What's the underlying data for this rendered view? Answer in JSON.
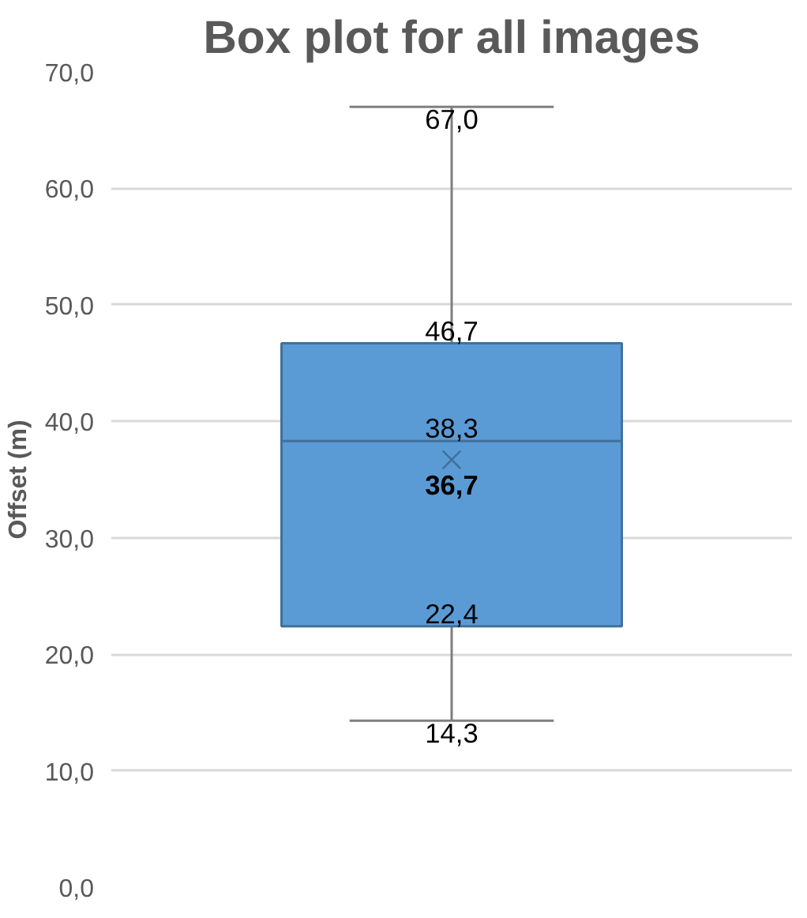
{
  "chart_data": {
    "type": "box",
    "title": "Box plot for all images",
    "ylabel": "Offset (m)",
    "categories": [
      null
    ],
    "boxes": [
      {
        "low": 14.3,
        "q1": 22.4,
        "median": 38.3,
        "q3": 46.7,
        "high": 67.0,
        "mean": 36.7
      }
    ],
    "color": "#5b9bd5",
    "ylim": [
      0,
      70
    ],
    "yticks": [
      {
        "value": 0,
        "label": "0,0"
      },
      {
        "value": 10,
        "label": "10,0"
      },
      {
        "value": 20,
        "label": "20,0"
      },
      {
        "value": 30,
        "label": "30,0"
      },
      {
        "value": 40,
        "label": "40,0"
      },
      {
        "value": 50,
        "label": "50,0"
      },
      {
        "value": 60,
        "label": "60,0"
      },
      {
        "value": 70,
        "label": "70,0"
      }
    ],
    "grid": "y",
    "tick_labels": "y",
    "marker": "cross",
    "annotations": [
      {
        "text": "67,0",
        "y": 67.0
      },
      {
        "text": "46,7",
        "y": 46.7
      },
      {
        "text": "38,3",
        "y": 38.3
      },
      "36,7",
      {
        "text": "22,4",
        "y": 22.4
      },
      {
        "text": "14,3",
        "y": 14.3
      }
    ]
  }
}
